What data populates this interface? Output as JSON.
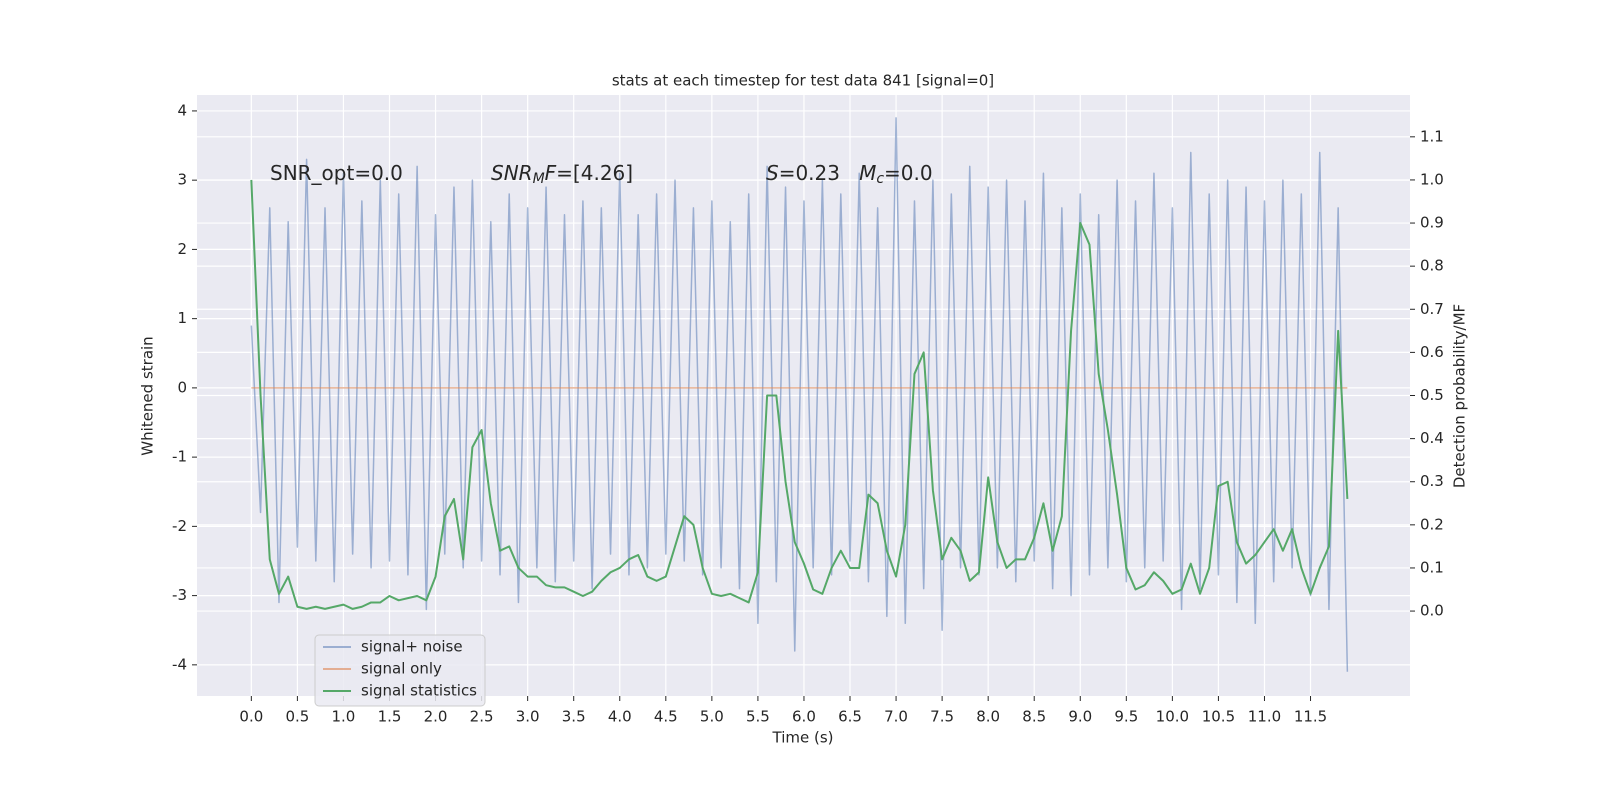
{
  "chart_data": {
    "type": "line",
    "title": "stats at each timestep for test data 841 [signal=0]",
    "xlabel": "Time (s)",
    "ylabel": "Whitened strain",
    "y2label": "Detection probability/MF",
    "xlim": [
      -0.59,
      12.58
    ],
    "ylim": [
      -4.45,
      4.23
    ],
    "y2lim": [
      -0.197,
      1.197
    ],
    "xticks": [
      {
        "value": 0,
        "label": "0.0"
      },
      0.5,
      {
        "value": 1,
        "label": "1.0"
      },
      1.5,
      {
        "value": 2,
        "label": "2.0"
      },
      2.5,
      {
        "value": 3,
        "label": "3.0"
      },
      3.5,
      {
        "value": 4,
        "label": "4.0"
      },
      4.5,
      {
        "value": 5,
        "label": "5.0"
      },
      5.5,
      {
        "value": 6,
        "label": "6.0"
      },
      6.5,
      {
        "value": 7,
        "label": "7.0"
      },
      7.5,
      {
        "value": 8,
        "label": "8.0"
      },
      8.5,
      {
        "value": 9,
        "label": "9.0"
      },
      9.5,
      {
        "value": 10,
        "label": "10.0"
      },
      10.5,
      {
        "value": 11,
        "label": "11.0"
      },
      11.5
    ],
    "yticks": [
      -4,
      -3,
      -2,
      -1,
      0,
      1,
      2,
      3,
      4
    ],
    "y2ticks": [
      {
        "value": 0,
        "label": "0.0"
      },
      0.1,
      0.2,
      0.3,
      0.4,
      0.5,
      0.6,
      0.7,
      0.8,
      0.9,
      {
        "value": 1,
        "label": "1.0"
      },
      1.1
    ],
    "grid": true,
    "legend": "lower left",
    "x": [
      0,
      0.1,
      0.2,
      0.3,
      0.4,
      0.5,
      0.6,
      0.7,
      0.8,
      0.9,
      1,
      1.1,
      1.2,
      1.3,
      1.4,
      1.5,
      1.6,
      1.7,
      1.8,
      1.9,
      2,
      2.1,
      2.2,
      2.3,
      2.4,
      2.5,
      2.6,
      2.7,
      2.8,
      2.9,
      3,
      3.1,
      3.2,
      3.3,
      3.4,
      3.5,
      3.6,
      3.7,
      3.8,
      3.9,
      4,
      4.1,
      4.2,
      4.3,
      4.4,
      4.5,
      4.6,
      4.7,
      4.8,
      4.9,
      5,
      5.1,
      5.2,
      5.3,
      5.4,
      5.5,
      5.6,
      5.7,
      5.8,
      5.9,
      6,
      6.1,
      6.2,
      6.3,
      6.4,
      6.5,
      6.6,
      6.7,
      6.8,
      6.9,
      7,
      7.1,
      7.2,
      7.3,
      7.4,
      7.5,
      7.6,
      7.7,
      7.8,
      7.9,
      8,
      8.1,
      8.2,
      8.3,
      8.4,
      8.5,
      8.6,
      8.7,
      8.8,
      8.9,
      9,
      9.1,
      9.2,
      9.3,
      9.4,
      9.5,
      9.6,
      9.7,
      9.8,
      9.9,
      10,
      10.1,
      10.2,
      10.3,
      10.4,
      10.5,
      10.6,
      10.7,
      10.8,
      10.9,
      11,
      11.1,
      11.2,
      11.3,
      11.4,
      11.5,
      11.6,
      11.7,
      11.8,
      11.9
    ],
    "series": [
      {
        "name": "signal+ noise",
        "color": "#4c72b0",
        "opacity": 0.5,
        "values": [
          0.9,
          -1.8,
          2.6,
          -3.1,
          2.4,
          -2.3,
          3.3,
          -2.5,
          2.6,
          -2.8,
          3.1,
          -2.4,
          2.7,
          -2.6,
          3.0,
          -2.5,
          2.8,
          -2.7,
          3.2,
          -3.2,
          2.5,
          -2.4,
          2.9,
          -2.6,
          3.0,
          -2.5,
          2.4,
          -2.7,
          2.8,
          -3.1,
          2.6,
          -2.6,
          2.9,
          -2.8,
          2.5,
          -2.5,
          2.7,
          -2.9,
          2.6,
          -2.4,
          3.1,
          -2.7,
          2.5,
          -2.6,
          2.8,
          -2.4,
          3.0,
          -2.5,
          2.6,
          -2.7,
          2.7,
          -2.6,
          2.4,
          -2.9,
          2.8,
          -3.4,
          3.2,
          -2.8,
          2.9,
          -3.8,
          2.7,
          -2.6,
          3.0,
          -2.7,
          2.8,
          -2.5,
          3.1,
          -2.8,
          2.6,
          -3.3,
          3.9,
          -3.4,
          2.7,
          -2.9,
          3.0,
          -3.5,
          2.8,
          -2.6,
          3.2,
          -2.7,
          2.9,
          -2.6,
          3.0,
          -2.8,
          2.7,
          -2.5,
          3.1,
          -2.9,
          2.6,
          -3.0,
          2.8,
          -2.7,
          2.5,
          -2.6,
          3.0,
          -2.8,
          2.7,
          -2.6,
          3.1,
          -2.5,
          2.6,
          -3.2,
          3.4,
          -2.9,
          2.8,
          -2.7,
          3.0,
          -3.1,
          2.9,
          -3.4,
          2.7,
          -2.8,
          3.0,
          -2.6,
          2.8,
          -3.0,
          3.4,
          -3.2,
          2.6,
          -4.1
        ]
      },
      {
        "name": "signal only",
        "color": "#dd8452",
        "opacity": 0.6,
        "values": [
          0,
          0,
          0,
          0,
          0,
          0,
          0,
          0,
          0,
          0,
          0,
          0,
          0,
          0,
          0,
          0,
          0,
          0,
          0,
          0,
          0,
          0,
          0,
          0,
          0,
          0,
          0,
          0,
          0,
          0,
          0,
          0,
          0,
          0,
          0,
          0,
          0,
          0,
          0,
          0,
          0,
          0,
          0,
          0,
          0,
          0,
          0,
          0,
          0,
          0,
          0,
          0,
          0,
          0,
          0,
          0,
          0,
          0,
          0,
          0,
          0,
          0,
          0,
          0,
          0,
          0,
          0,
          0,
          0,
          0,
          0,
          0,
          0,
          0,
          0,
          0,
          0,
          0,
          0,
          0,
          0,
          0,
          0,
          0,
          0,
          0,
          0,
          0,
          0,
          0,
          0,
          0,
          0,
          0,
          0,
          0,
          0,
          0,
          0,
          0,
          0,
          0,
          0,
          0,
          0,
          0,
          0,
          0,
          0,
          0,
          0,
          0,
          0,
          0,
          0,
          0,
          0,
          0,
          0,
          0
        ]
      },
      {
        "name": "signal statistics",
        "color": "#55a868",
        "opacity": 1,
        "axis": "y2",
        "values": [
          1.0,
          0.5,
          0.12,
          0.04,
          0.08,
          0.01,
          0.005,
          0.01,
          0.005,
          0.01,
          0.015,
          0.005,
          0.01,
          0.02,
          0.02,
          0.035,
          0.025,
          0.03,
          0.035,
          0.025,
          0.08,
          0.22,
          0.26,
          0.12,
          0.38,
          0.42,
          0.25,
          0.14,
          0.15,
          0.1,
          0.08,
          0.08,
          0.06,
          0.055,
          0.055,
          0.045,
          0.035,
          0.045,
          0.07,
          0.09,
          0.1,
          0.12,
          0.13,
          0.08,
          0.07,
          0.08,
          0.15,
          0.22,
          0.2,
          0.1,
          0.04,
          0.035,
          0.04,
          0.03,
          0.02,
          0.09,
          0.5,
          0.5,
          0.3,
          0.16,
          0.11,
          0.05,
          0.04,
          0.1,
          0.14,
          0.1,
          0.1,
          0.27,
          0.25,
          0.14,
          0.08,
          0.2,
          0.55,
          0.6,
          0.28,
          0.12,
          0.17,
          0.14,
          0.07,
          0.09,
          0.31,
          0.16,
          0.1,
          0.12,
          0.12,
          0.17,
          0.25,
          0.14,
          0.22,
          0.65,
          0.9,
          0.85,
          0.55,
          0.42,
          0.27,
          0.1,
          0.05,
          0.06,
          0.09,
          0.07,
          0.04,
          0.05,
          0.11,
          0.04,
          0.1,
          0.29,
          0.3,
          0.16,
          0.11,
          0.13,
          0.16,
          0.19,
          0.14,
          0.19,
          0.1,
          0.04,
          0.1,
          0.15,
          0.65,
          0.26
        ]
      }
    ],
    "annotations": [
      {
        "segments": [
          {
            "text": "SNR_opt=0.0",
            "style": "normal"
          }
        ]
      },
      {
        "segments": [
          {
            "text": "SNR",
            "style": "italic"
          },
          {
            "text": "M",
            "style": "italic-sub"
          },
          {
            "text": "F",
            "style": "italic"
          },
          {
            "text": "=[4.26]",
            "style": "normal"
          }
        ]
      },
      {
        "segments": [
          {
            "text": "S",
            "style": "italic"
          },
          {
            "text": "=0.23   ",
            "style": "normal"
          },
          {
            "text": "M",
            "style": "italic"
          },
          {
            "text": "c",
            "style": "italic-sub"
          },
          {
            "text": "=0.0",
            "style": "normal"
          }
        ]
      }
    ]
  }
}
